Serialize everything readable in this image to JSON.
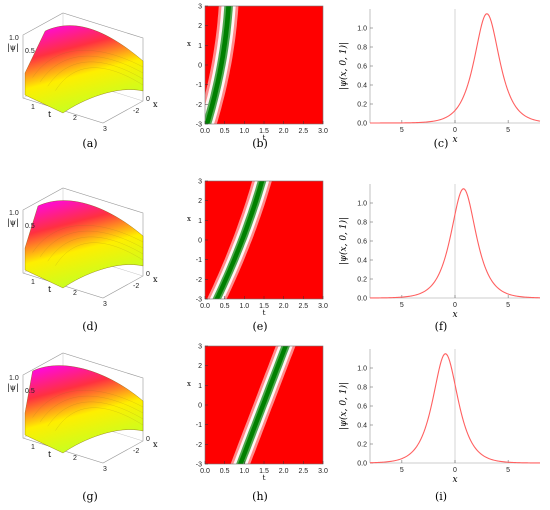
{
  "panel_labels": [
    "(a)",
    "(b)",
    "(c)",
    "(d)",
    "(e)",
    "(f)",
    "(g)",
    "(h)",
    "(i)"
  ],
  "surface_axis_labels": {
    "amplitude": "|ψ|",
    "t": "t",
    "x": "x"
  },
  "density_axis_labels": {
    "x": "t",
    "y": "x"
  },
  "profile_axis_labels": {
    "x": "x",
    "y": "|ψ(x, 0, 1)|"
  },
  "chart_data": [
    {
      "panel": "a",
      "type": "surface",
      "zlabel": "|ψ|",
      "xlabel": "t",
      "ylabel": "x",
      "z_ticks": [
        1.0,
        0.5
      ],
      "t_ticks": [
        1,
        2,
        3
      ],
      "x_ticks": [
        0,
        -2
      ],
      "sheet_tilt": 0.9,
      "colormap": [
        "#ff00ff",
        "#ff3040",
        "#ffee00",
        "#c8ff20"
      ]
    },
    {
      "panel": "b",
      "type": "heatmap",
      "xlabel": "t",
      "ylabel": "x",
      "x_ticks": [
        0.0,
        0.5,
        1.0,
        1.5,
        2.0,
        2.5,
        3.0
      ],
      "y_ticks": [
        -3,
        -2,
        -1,
        0,
        1,
        2,
        3
      ],
      "xlim": [
        0,
        3
      ],
      "ylim": [
        -3,
        3
      ],
      "track": {
        "x0": 0.05,
        "x1": 0.6,
        "curve": 0.4
      },
      "colors": {
        "background": "#ff0000",
        "ridge": "#008000",
        "edge": "#ffffff"
      }
    },
    {
      "panel": "c",
      "type": "line",
      "xlabel": "x",
      "ylabel": "|ψ(x, 0, 1)|",
      "x_ticks": [
        "5",
        "0",
        "5"
      ],
      "y_ticks": [
        0.0,
        0.2,
        0.4,
        0.6,
        0.8,
        1.0
      ],
      "xlim": [
        -8,
        8
      ],
      "ylim": [
        0,
        1.2
      ],
      "peak_x": 3.0,
      "peak_y": 1.15,
      "width": 1.05,
      "color": "#ff6060"
    },
    {
      "panel": "d",
      "type": "surface",
      "zlabel": "|ψ|",
      "xlabel": "t",
      "ylabel": "x",
      "z_ticks": [
        1.0,
        0.5
      ],
      "t_ticks": [
        1,
        2,
        3
      ],
      "x_ticks": [
        0,
        -2
      ],
      "sheet_tilt": 0.5,
      "colormap": [
        "#ff00ff",
        "#ff3040",
        "#ffee00",
        "#c8ff20"
      ]
    },
    {
      "panel": "e",
      "type": "heatmap",
      "xlabel": "t",
      "ylabel": "x",
      "x_ticks": [
        0.0,
        0.5,
        1.0,
        1.5,
        2.0,
        2.5,
        3.0
      ],
      "y_ticks": [
        -3,
        -2,
        -1,
        0,
        1,
        2,
        3
      ],
      "xlim": [
        0,
        3
      ],
      "ylim": [
        -3,
        3
      ],
      "track": {
        "x0": 0.3,
        "x1": 1.45,
        "curve": 0.15
      },
      "colors": {
        "background": "#ff0000",
        "ridge": "#008000",
        "edge": "#ffffff"
      }
    },
    {
      "panel": "f",
      "type": "line",
      "xlabel": "x",
      "ylabel": "|ψ(x, 0, 1)|",
      "x_ticks": [
        "5",
        "0",
        "5"
      ],
      "y_ticks": [
        0.0,
        0.2,
        0.4,
        0.6,
        0.8,
        1.0
      ],
      "xlim": [
        -8,
        8
      ],
      "ylim": [
        0,
        1.2
      ],
      "peak_x": 0.8,
      "peak_y": 1.15,
      "width": 1.05,
      "color": "#ff6060"
    },
    {
      "panel": "g",
      "type": "surface",
      "zlabel": "|ψ|",
      "xlabel": "t",
      "ylabel": "x",
      "z_ticks": [
        1.0,
        0.5
      ],
      "t_ticks": [
        1,
        2,
        3
      ],
      "x_ticks": [
        0,
        -2
      ],
      "sheet_tilt": 0.2,
      "colormap": [
        "#ff00ff",
        "#ff3040",
        "#ffee00",
        "#c8ff20"
      ]
    },
    {
      "panel": "h",
      "type": "heatmap",
      "xlabel": "t",
      "ylabel": "x",
      "x_ticks": [
        0.0,
        0.5,
        1.0,
        1.5,
        2.0,
        2.5,
        3.0
      ],
      "y_ticks": [
        -3,
        -2,
        -1,
        0,
        1,
        2,
        3
      ],
      "xlim": [
        0,
        3
      ],
      "ylim": [
        -3,
        3
      ],
      "track": {
        "x0": 0.9,
        "x1": 2.05,
        "curve": 0.0
      },
      "colors": {
        "background": "#ff0000",
        "ridge": "#008000",
        "edge": "#ffffff"
      }
    },
    {
      "panel": "i",
      "type": "line",
      "xlabel": "x",
      "ylabel": "|ψ(x, 0, 1)|",
      "x_ticks": [
        "5",
        "0",
        "5"
      ],
      "y_ticks": [
        0.0,
        0.2,
        0.4,
        0.6,
        0.8,
        1.0
      ],
      "xlim": [
        -8,
        8
      ],
      "ylim": [
        0,
        1.2
      ],
      "peak_x": -0.9,
      "peak_y": 1.15,
      "width": 1.05,
      "color": "#ff6060"
    }
  ]
}
